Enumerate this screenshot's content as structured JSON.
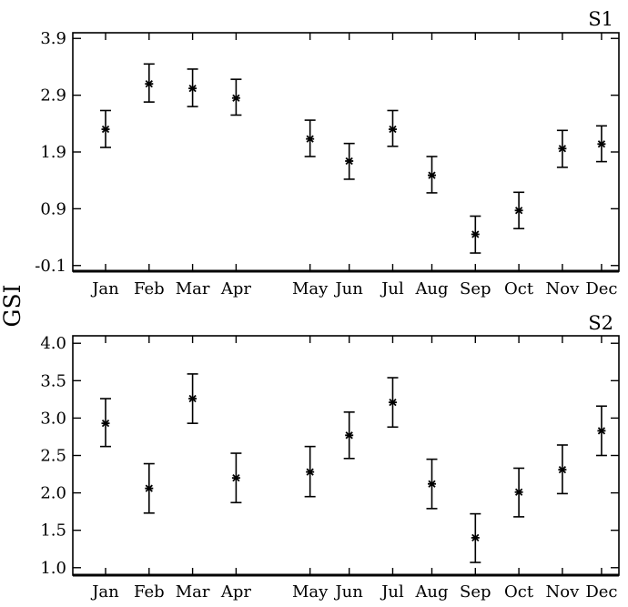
{
  "chart_data": {
    "ylabel": "GSI",
    "months": [
      "Jan",
      "Feb",
      "Mar",
      "Apr",
      "May",
      "Jun",
      "Jul",
      "Aug",
      "Sep",
      "Oct",
      "Nov",
      "Dec"
    ],
    "panels": [
      {
        "label": "S1",
        "type": "scatter",
        "ylim": [
          -0.2,
          4.0
        ],
        "yticks": [
          -0.1,
          0.9,
          1.9,
          2.9,
          3.9
        ],
        "ytick_labels": [
          "-0.1",
          "0.9",
          "1.9",
          "2.9",
          "3.9"
        ],
        "x_positions": [
          1,
          2,
          3,
          4,
          5.7,
          6.6,
          7.6,
          8.5,
          9.5,
          10.5,
          11.5,
          12.4
        ],
        "values": [
          2.3,
          3.1,
          3.02,
          2.85,
          2.13,
          1.74,
          2.3,
          1.49,
          0.45,
          0.87,
          1.96,
          2.04
        ],
        "err_low": [
          1.98,
          2.78,
          2.7,
          2.55,
          1.82,
          1.42,
          2.0,
          1.18,
          0.12,
          0.55,
          1.63,
          1.73
        ],
        "err_high": [
          2.63,
          3.45,
          3.36,
          3.18,
          2.46,
          2.05,
          2.63,
          1.82,
          0.77,
          1.19,
          2.28,
          2.36
        ]
      },
      {
        "label": "S2",
        "type": "scatter",
        "ylim": [
          0.9,
          4.1
        ],
        "yticks": [
          1.0,
          1.5,
          2.0,
          2.5,
          3.0,
          3.5,
          4.0
        ],
        "ytick_labels": [
          "1.0",
          "1.5",
          "2.0",
          "2.5",
          "3.0",
          "3.5",
          "4.0"
        ],
        "x_positions": [
          1,
          2,
          3,
          4,
          5.7,
          6.6,
          7.6,
          8.5,
          9.5,
          10.5,
          11.5,
          12.4
        ],
        "values": [
          2.93,
          2.06,
          3.26,
          2.2,
          2.28,
          2.77,
          3.21,
          2.12,
          1.4,
          2.01,
          2.31,
          2.83
        ],
        "err_low": [
          2.62,
          1.73,
          2.93,
          1.87,
          1.95,
          2.46,
          2.88,
          1.79,
          1.07,
          1.68,
          1.99,
          2.5
        ],
        "err_high": [
          3.26,
          2.39,
          3.59,
          2.53,
          2.62,
          3.08,
          3.54,
          2.45,
          1.72,
          2.33,
          2.64,
          3.16
        ]
      }
    ]
  }
}
